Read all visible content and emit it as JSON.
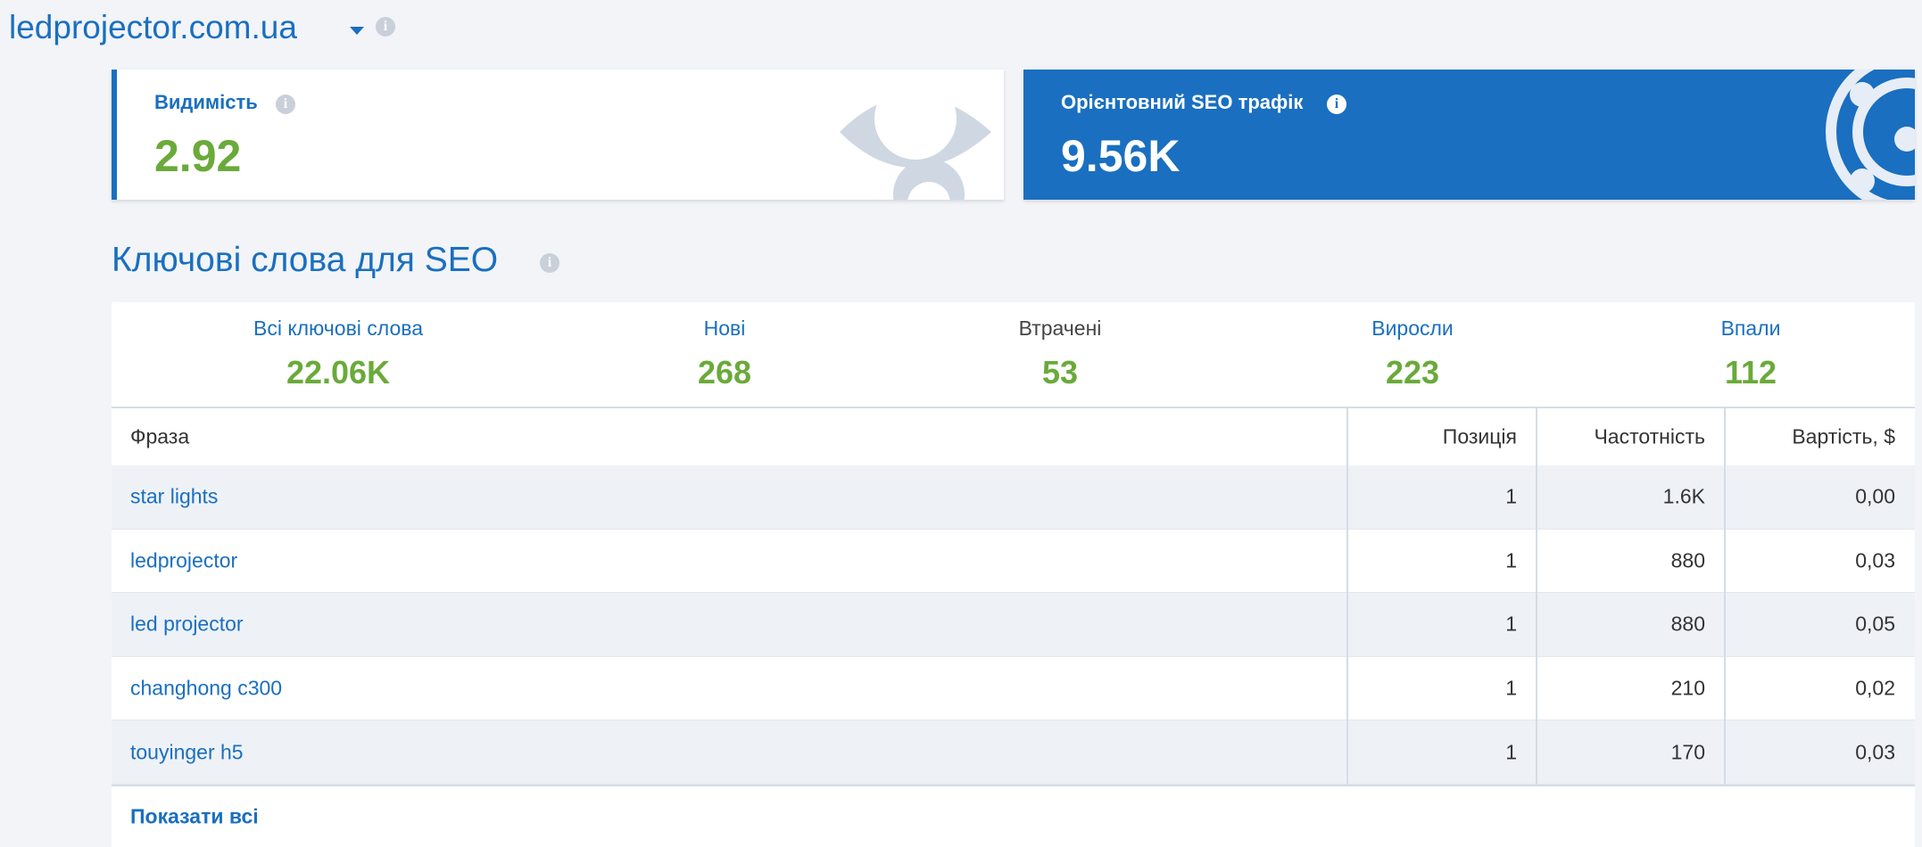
{
  "header": {
    "domain": "ledprojector.com.ua"
  },
  "cards": [
    {
      "label": "Видимість",
      "value": "2.92"
    },
    {
      "label": "Орієнтовний SEO трафік",
      "value": "9.56K"
    }
  ],
  "keywords": {
    "title": "Ключові слова для SEO",
    "stats": [
      {
        "label": "Всі ключові слова",
        "value": "22.06K"
      },
      {
        "label": "Нові",
        "value": "268"
      },
      {
        "label": "Втрачені",
        "value": "53"
      },
      {
        "label": "Виросли",
        "value": "223"
      },
      {
        "label": "Впали",
        "value": "112"
      }
    ]
  },
  "table": {
    "columns": [
      "Фраза",
      "Позиція",
      "Частотність",
      "Вартість, $"
    ],
    "rows": [
      [
        "star lights",
        "1",
        "1.6K",
        "0,00"
      ],
      [
        "ledprojector",
        "1",
        "880",
        "0,03"
      ],
      [
        "led projector",
        "1",
        "880",
        "0,05"
      ],
      [
        "changhong c300",
        "1",
        "210",
        "0,02"
      ],
      [
        "touyinger h5",
        "1",
        "170",
        "0,03"
      ]
    ],
    "show_all": "Показати всі"
  }
}
